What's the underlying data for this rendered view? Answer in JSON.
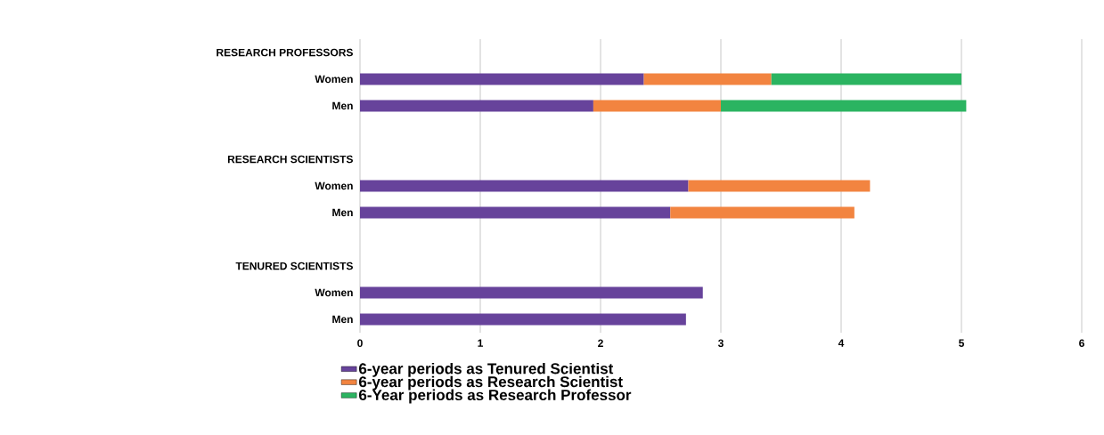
{
  "chart_data": {
    "type": "bar",
    "orientation": "horizontal",
    "stacked": true,
    "categories": [
      "RESEARCH PROFESSORS",
      "Women",
      "Men",
      null,
      "RESEARCH SCIENTISTS",
      "Women",
      "Men",
      null,
      "TENURED SCIENTISTS",
      "Women",
      "Men"
    ],
    "series": [
      {
        "name": "6-year periods as Tenured Scientist",
        "color": "#67439b",
        "values": [
          null,
          2.36,
          1.94,
          null,
          null,
          2.73,
          2.58,
          null,
          null,
          2.85,
          2.71
        ]
      },
      {
        "name": "6-year periods as Research Scientist",
        "color": "#f28440",
        "values": [
          null,
          1.06,
          1.06,
          null,
          null,
          1.51,
          1.53,
          null,
          null,
          null,
          null
        ]
      },
      {
        "name": "6-Year periods as Research Professor",
        "color": "#2bb461",
        "values": [
          null,
          1.58,
          2.04,
          null,
          null,
          null,
          null,
          null,
          null,
          null,
          null
        ]
      }
    ],
    "xlim": [
      0,
      6
    ],
    "xticks": [
      0,
      1,
      2,
      3,
      4,
      5,
      6
    ],
    "grid": "x",
    "legend": "bottom"
  }
}
